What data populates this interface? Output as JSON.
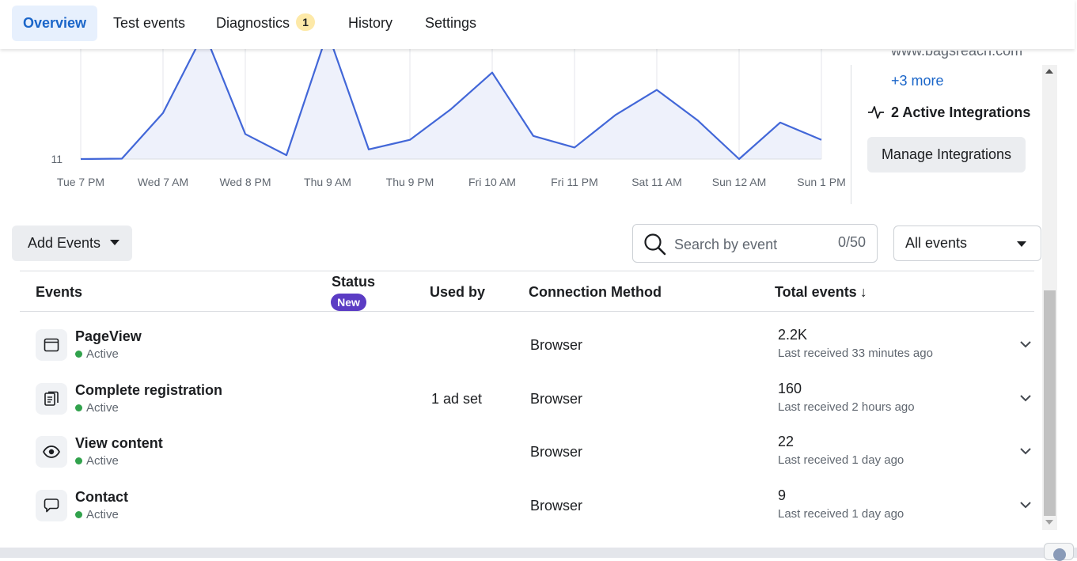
{
  "tabs": [
    {
      "label": "Overview",
      "active": true
    },
    {
      "label": "Test events"
    },
    {
      "label": "Diagnostics",
      "badge": "1"
    },
    {
      "label": "History"
    },
    {
      "label": "Settings"
    }
  ],
  "chart_data": {
    "type": "area",
    "y_tick_label": "11",
    "x_tick_labels": [
      "Tue 7 PM",
      "Wed 7 AM",
      "Wed 8 PM",
      "Thu 9 AM",
      "Thu 9 PM",
      "Fri 10 AM",
      "Fri 11 PM",
      "Sat 11 AM",
      "Sun 12 AM",
      "Sun 1 PM"
    ],
    "series": [
      {
        "values": [
          11,
          11.2,
          35,
          77,
          24,
          13,
          77,
          16,
          21,
          37,
          56,
          23,
          17,
          34,
          47,
          31,
          11,
          30,
          21
        ]
      }
    ],
    "ylim": [
      11,
      60
    ],
    "grid": "vertical",
    "color": "#4267d8",
    "fill": "#eef1fb"
  },
  "summary": {
    "domain": "www.bagsreach.com",
    "more_link": "+3 more",
    "integrations": "2 Active Integrations",
    "manage_button": "Manage Integrations"
  },
  "toolbar": {
    "add_events": "Add Events",
    "search_placeholder": "Search by event",
    "search_count": "0/50",
    "filter": "All events"
  },
  "table": {
    "headers": {
      "events": "Events",
      "status": "Status",
      "status_pill": "New",
      "used_by": "Used by",
      "connection": "Connection Method",
      "total": "Total events",
      "sort_icon": "↓"
    },
    "rows": [
      {
        "icon": "browser-window-icon",
        "name": "PageView",
        "status": "Active",
        "used_by": "",
        "connection": "Browser",
        "total": "2.2K",
        "last": "Last received 33 minutes ago"
      },
      {
        "icon": "registration-form-icon",
        "name": "Complete registration",
        "status": "Active",
        "used_by": "1 ad set",
        "connection": "Browser",
        "total": "160",
        "last": "Last received 2 hours ago"
      },
      {
        "icon": "eye-icon",
        "name": "View content",
        "status": "Active",
        "used_by": "",
        "connection": "Browser",
        "total": "22",
        "last": "Last received 1 day ago"
      },
      {
        "icon": "chat-bubble-icon",
        "name": "Contact",
        "status": "Active",
        "used_by": "",
        "connection": "Browser",
        "total": "9",
        "last": "Last received 1 day ago"
      }
    ]
  }
}
